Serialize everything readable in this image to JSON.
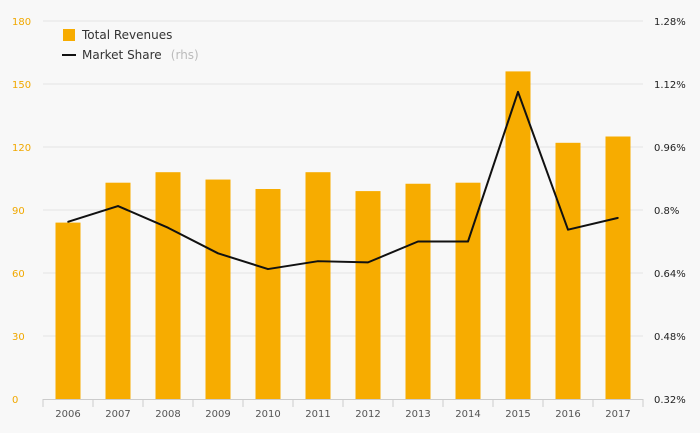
{
  "chart_data": {
    "type": "bar",
    "categories": [
      "2006",
      "2007",
      "2008",
      "2009",
      "2010",
      "2011",
      "2012",
      "2013",
      "2014",
      "2015",
      "2016",
      "2017"
    ],
    "series": [
      {
        "name": "Total Revenues",
        "type": "bar",
        "axis": "left",
        "color": "#f7ac00",
        "values": [
          84,
          103,
          108,
          104.5,
          100,
          108,
          99,
          102.5,
          103,
          156,
          122,
          125
        ]
      },
      {
        "name": "Market Share",
        "name_suffix": "(rhs)",
        "type": "line",
        "axis": "right",
        "color": "#111111",
        "values": [
          0.77,
          0.81,
          0.755,
          0.69,
          0.65,
          0.67,
          0.667,
          0.72,
          0.72,
          1.1,
          0.75,
          0.78
        ]
      }
    ],
    "y_left": {
      "ylim": [
        0,
        180
      ],
      "ticks": [
        0,
        30,
        60,
        90,
        120,
        150,
        180
      ],
      "tick_labels": [
        "0",
        "30",
        "60",
        "90",
        "120",
        "150",
        "180"
      ],
      "color": "#f0a800"
    },
    "y_right": {
      "ylim": [
        0.32,
        1.28
      ],
      "ticks": [
        0.32,
        0.48,
        0.64,
        0.8,
        0.96,
        1.12,
        1.28
      ],
      "tick_labels": [
        "0.32%",
        "0.48%",
        "0.64%",
        "0.8%",
        "0.96%",
        "1.12%",
        "1.28%"
      ],
      "color": "#222222"
    },
    "grid": true,
    "legend": {
      "position": "top-left",
      "items": [
        {
          "label": "Total Revenues",
          "marker": "square",
          "color": "#f7ac00"
        },
        {
          "label": "Market Share",
          "suffix": "(rhs)",
          "marker": "line",
          "color": "#111111"
        }
      ]
    }
  }
}
